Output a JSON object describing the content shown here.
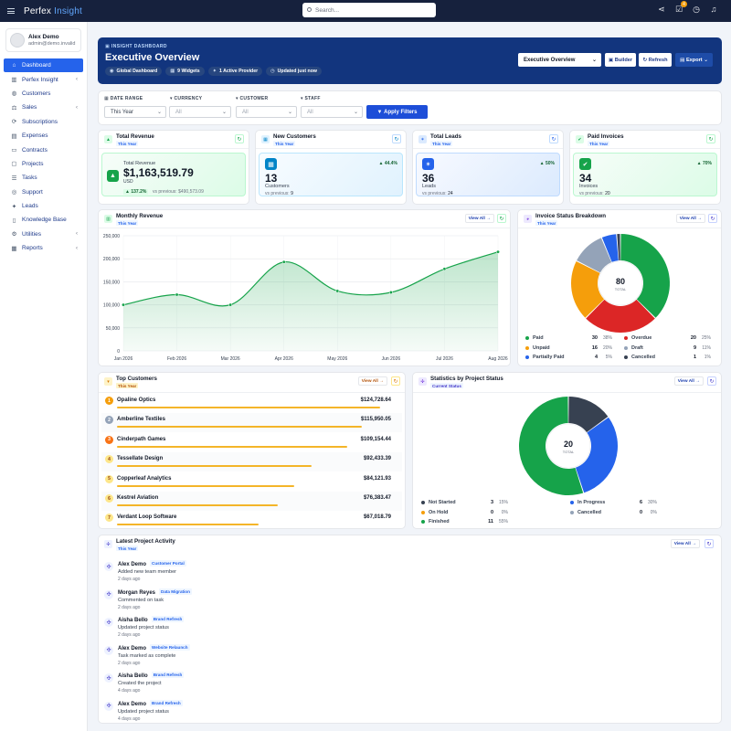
{
  "app": {
    "brand_main": "Perfex",
    "brand_accent": "Insight"
  },
  "search": {
    "placeholder": "Search..."
  },
  "topbar": {
    "icons": [
      "share-icon",
      "task-check-icon",
      "clock-icon",
      "bell-icon"
    ],
    "tasks_badge": "4"
  },
  "user": {
    "name": "Alex Demo",
    "email": "admin@demo.invalid"
  },
  "sidebar": {
    "items": [
      {
        "label": "Dashboard",
        "icon": "home-icon",
        "active": true,
        "chevron": false
      },
      {
        "label": "Perfex Insight",
        "icon": "chart-icon",
        "active": false,
        "chevron": true
      },
      {
        "label": "Customers",
        "icon": "user-icon",
        "active": false,
        "chevron": false
      },
      {
        "label": "Sales",
        "icon": "balance-icon",
        "active": false,
        "chevron": true
      },
      {
        "label": "Subscriptions",
        "icon": "repeat-icon",
        "active": false,
        "chevron": false
      },
      {
        "label": "Expenses",
        "icon": "receipt-icon",
        "active": false,
        "chevron": false
      },
      {
        "label": "Contracts",
        "icon": "document-icon",
        "active": false,
        "chevron": false
      },
      {
        "label": "Projects",
        "icon": "folder-icon",
        "active": false,
        "chevron": false
      },
      {
        "label": "Tasks",
        "icon": "checklist-icon",
        "active": false,
        "chevron": false
      },
      {
        "label": "Support",
        "icon": "support-icon",
        "active": false,
        "chevron": false
      },
      {
        "label": "Leads",
        "icon": "leads-icon",
        "active": false,
        "chevron": false
      },
      {
        "label": "Knowledge Base",
        "icon": "book-icon",
        "active": false,
        "chevron": false
      },
      {
        "label": "Utilities",
        "icon": "settings-icon",
        "active": false,
        "chevron": true
      },
      {
        "label": "Reports",
        "icon": "report-icon",
        "active": false,
        "chevron": true
      }
    ]
  },
  "hero": {
    "kicker": "INSIGHT DASHBOARD",
    "title": "Executive Overview",
    "chips": [
      "Global Dashboard",
      "9 Widgets",
      "1 Active Provider",
      "Updated just now"
    ],
    "select_value": "Executive Overview",
    "builder_label": "Builder",
    "refresh_label": "Refresh",
    "export_label": "Export"
  },
  "filters": {
    "date_range_label": "DATE RANGE",
    "date_range_value": "This Year",
    "currency_label": "CURRENCY",
    "currency_placeholder": "All",
    "customer_label": "CUSTOMER",
    "customer_placeholder": "All",
    "staff_label": "STAFF",
    "staff_placeholder": "All",
    "apply_label": "Apply Filters"
  },
  "kpis": [
    {
      "title": "Total Revenue",
      "period": "This Year",
      "sub_label": "Total Revenue",
      "value": "$1,163,519.79",
      "currency": "USD",
      "change": "137.2%",
      "previous": "vs previous: $490,573.09",
      "color": "#16a34a"
    },
    {
      "title": "New Customers",
      "period": "This Year",
      "value": "13",
      "sub_label": "Customers",
      "change": "44.4%",
      "previous_label": "vs previous:",
      "previous_value": "9",
      "color": "#0284c7"
    },
    {
      "title": "Total Leads",
      "period": "This Year",
      "value": "36",
      "sub_label": "Leads",
      "change": "50%",
      "previous_label": "vs previous:",
      "previous_value": "24",
      "color": "#2563eb"
    },
    {
      "title": "Paid Invoices",
      "period": "This Year",
      "value": "34",
      "sub_label": "Invoices",
      "change": "70%",
      "previous_label": "vs previous:",
      "previous_value": "20",
      "color": "#16a34a"
    }
  ],
  "monthly_revenue": {
    "title": "Monthly Revenue",
    "period": "This Year",
    "view_all": "View All"
  },
  "invoice_status": {
    "title": "Invoice Status Breakdown",
    "period": "This Year",
    "view_all": "View All",
    "total": "80",
    "total_label": "TOTAL",
    "legend": [
      {
        "name": "Paid",
        "count": "30",
        "pct": "38%",
        "color": "#16a34a"
      },
      {
        "name": "Overdue",
        "count": "20",
        "pct": "25%",
        "color": "#dc2626"
      },
      {
        "name": "Unpaid",
        "count": "16",
        "pct": "20%",
        "color": "#f59e0b"
      },
      {
        "name": "Draft",
        "count": "9",
        "pct": "11%",
        "color": "#94a3b8"
      },
      {
        "name": "Partially Paid",
        "count": "4",
        "pct": "5%",
        "color": "#2563eb"
      },
      {
        "name": "Cancelled",
        "count": "1",
        "pct": "1%",
        "color": "#374151"
      }
    ]
  },
  "top_customers": {
    "title": "Top Customers",
    "period": "This Year",
    "view_all": "View All",
    "rows": [
      {
        "rank": "1",
        "name": "Opaline Optics",
        "amount": "$124,728.64",
        "share": 1.0,
        "rank_color": "#f59e0b"
      },
      {
        "rank": "2",
        "name": "Amberline Textiles",
        "amount": "$115,950.05",
        "share": 0.93,
        "rank_color": "#94a3b8"
      },
      {
        "rank": "3",
        "name": "Cinderpath Games",
        "amount": "$109,154.44",
        "share": 0.875,
        "rank_color": "#f97316"
      },
      {
        "rank": "4",
        "name": "Tessellate Design",
        "amount": "$92,433.39",
        "share": 0.741,
        "rank_color": "#fde68a"
      },
      {
        "rank": "5",
        "name": "Copperleaf Analytics",
        "amount": "$84,121.93",
        "share": 0.674,
        "rank_color": "#fde68a"
      },
      {
        "rank": "6",
        "name": "Kestrel Aviation",
        "amount": "$76,383.47",
        "share": 0.612,
        "rank_color": "#fde68a"
      },
      {
        "rank": "7",
        "name": "Verdant Loop Software",
        "amount": "$67,018.79",
        "share": 0.537,
        "rank_color": "#fde68a"
      }
    ]
  },
  "project_status": {
    "title": "Statistics by Project Status",
    "period": "Current Status",
    "view_all": "View All",
    "total": "20",
    "total_label": "TOTAL",
    "legend": [
      {
        "name": "Not Started",
        "count": "3",
        "pct": "15%",
        "color": "#374151"
      },
      {
        "name": "In Progress",
        "count": "6",
        "pct": "30%",
        "color": "#2563eb"
      },
      {
        "name": "On Hold",
        "count": "0",
        "pct": "0%",
        "color": "#f59e0b"
      },
      {
        "name": "Cancelled",
        "count": "0",
        "pct": "0%",
        "color": "#94a3b8"
      },
      {
        "name": "Finished",
        "count": "11",
        "pct": "55%",
        "color": "#16a34a"
      }
    ]
  },
  "activity": {
    "title": "Latest Project Activity",
    "period": "This Year",
    "view_all": "View All",
    "items": [
      {
        "name": "Alex Demo",
        "tag": "Customer Portal",
        "desc": "Added new team member",
        "time": "2 days ago"
      },
      {
        "name": "Morgan Reyes",
        "tag": "Data Migration",
        "desc": "Commented on task",
        "time": "2 days ago"
      },
      {
        "name": "Aisha Bello",
        "tag": "Brand Refresh",
        "desc": "Updated project status",
        "time": "2 days ago"
      },
      {
        "name": "Alex Demo",
        "tag": "Website Relaunch",
        "desc": "Task marked as complete",
        "time": "2 days ago"
      },
      {
        "name": "Aisha Bello",
        "tag": "Brand Refresh",
        "desc": "Created the project",
        "time": "4 days ago"
      },
      {
        "name": "Alex Demo",
        "tag": "Brand Refresh",
        "desc": "Updated project status",
        "time": "4 days ago"
      }
    ]
  },
  "chart_data": [
    {
      "type": "area",
      "title": "Monthly Revenue",
      "x": [
        "Jan 2026",
        "Feb 2026",
        "Mar 2026",
        "Apr 2026",
        "May 2026",
        "Jun 2026",
        "Jul 2026",
        "Aug 2026"
      ],
      "y_ticks": [
        "0",
        "50,000",
        "100,000",
        "150,000",
        "200,000",
        "250,000"
      ],
      "ylim": [
        0,
        250000
      ],
      "series": [
        {
          "values": [
            100000,
            122000,
            100000,
            193000,
            130000,
            127000,
            178000,
            215000
          ],
          "color": "#16a34a"
        }
      ],
      "grid": true
    },
    {
      "type": "pie",
      "title": "Invoice Status Breakdown",
      "labels": [
        "Paid",
        "Overdue",
        "Unpaid",
        "Draft",
        "Partially Paid",
        "Cancelled"
      ],
      "values": [
        30,
        20,
        16,
        9,
        4,
        1
      ],
      "donut": true
    },
    {
      "type": "pie",
      "title": "Statistics by Project Status",
      "labels": [
        "Not Started",
        "In Progress",
        "On Hold",
        "Cancelled",
        "Finished"
      ],
      "values": [
        3,
        6,
        0,
        0,
        11
      ],
      "donut": true
    }
  ]
}
